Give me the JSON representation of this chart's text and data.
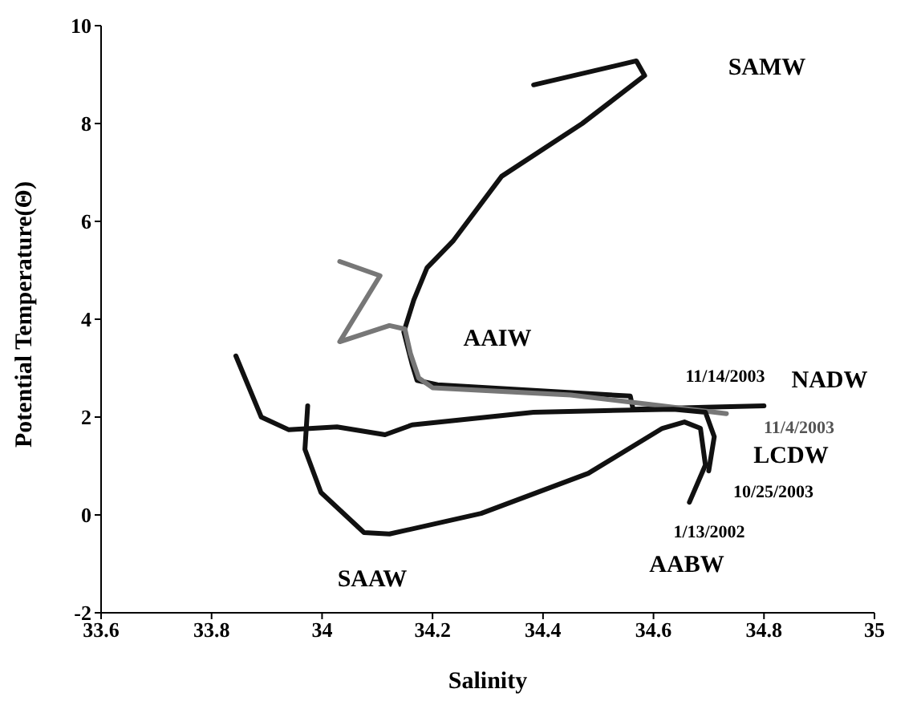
{
  "chart_data": {
    "type": "line",
    "xlabel": "Salinity",
    "ylabel": "Potential Temperature(Θ)",
    "xlim": [
      33.6,
      35
    ],
    "ylim": [
      -2,
      10
    ],
    "xticks": [
      33.6,
      33.8,
      34,
      34.2,
      34.4,
      34.6,
      34.8,
      35
    ],
    "yticks": [
      -2,
      0,
      2,
      4,
      6,
      8,
      10
    ],
    "grid": false,
    "marker": "none",
    "line_style": "solid",
    "series": [
      {
        "color": "#111111",
        "x": [
          34.383,
          34.569,
          34.584,
          34.471,
          34.325,
          34.238,
          34.19,
          34.166,
          34.148,
          34.163,
          34.172,
          34.209,
          34.558,
          34.563,
          34.694,
          34.8
        ],
        "values": [
          8.79,
          9.28,
          8.98,
          8.0,
          6.92,
          5.61,
          5.05,
          4.39,
          3.74,
          3.08,
          2.75,
          2.66,
          2.43,
          2.16,
          2.2,
          2.23
        ]
      },
      {
        "color": "#777777",
        "x": [
          34.032,
          34.105,
          34.032,
          34.122,
          34.15,
          34.16,
          34.175,
          34.2,
          34.45,
          34.6,
          34.732
        ],
        "values": [
          5.18,
          4.89,
          3.54,
          3.87,
          3.8,
          3.3,
          2.8,
          2.6,
          2.45,
          2.25,
          2.07
        ]
      },
      {
        "color": "#111111",
        "x": [
          33.844,
          33.89,
          33.94,
          34.027,
          34.114,
          34.163,
          34.383,
          34.636,
          34.694,
          34.71,
          34.7
        ],
        "values": [
          3.25,
          2.0,
          1.74,
          1.8,
          1.64,
          1.84,
          2.1,
          2.16,
          2.1,
          1.6,
          0.9
        ]
      },
      {
        "color": "#111111",
        "x": [
          33.974,
          33.969,
          33.998,
          34.076,
          34.122,
          34.288,
          34.482,
          34.616,
          34.656,
          34.685,
          34.694,
          34.665
        ],
        "values": [
          2.23,
          1.34,
          0.46,
          -0.36,
          -0.39,
          0.03,
          0.85,
          1.77,
          1.9,
          1.77,
          1.02,
          0.26
        ]
      }
    ],
    "annotations": [
      "SAMW",
      "AAIW",
      "NADW",
      "LCDW",
      "11/14/2003",
      "11/4/2003",
      "10/25/2003",
      "1/13/2002",
      "AABW",
      "SAAW"
    ]
  }
}
